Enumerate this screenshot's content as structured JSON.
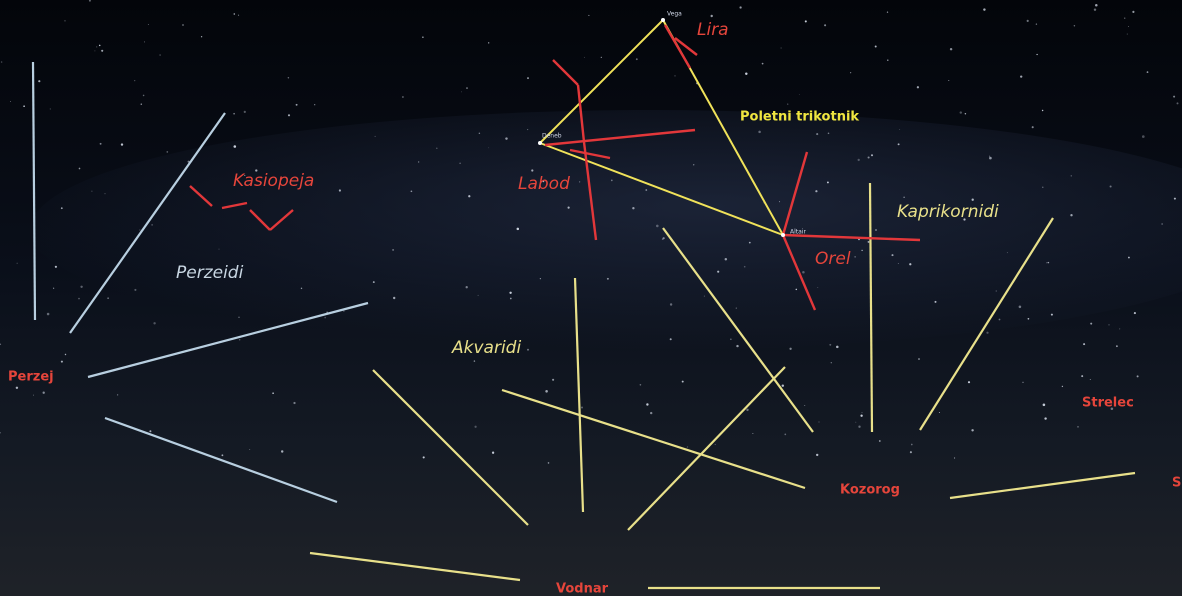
{
  "labels": {
    "lira": "Lira",
    "summer_triangle": "Poletni trikotnik",
    "kasiopeja": "Kasiopeja",
    "labod": "Labod",
    "perzeidi": "Perzeidi",
    "kaprikornidi": "Kaprikornidi",
    "orel": "Orel",
    "akvaridi": "Akvaridi",
    "perzej": "Perzej",
    "strelec": "Strelec",
    "kozorog": "Kozorog",
    "vodnar": "Vodnar",
    "cut_label": "S"
  },
  "stars": {
    "vega": "Vega",
    "deneb": "Deneb",
    "altair": "Altair"
  }
}
